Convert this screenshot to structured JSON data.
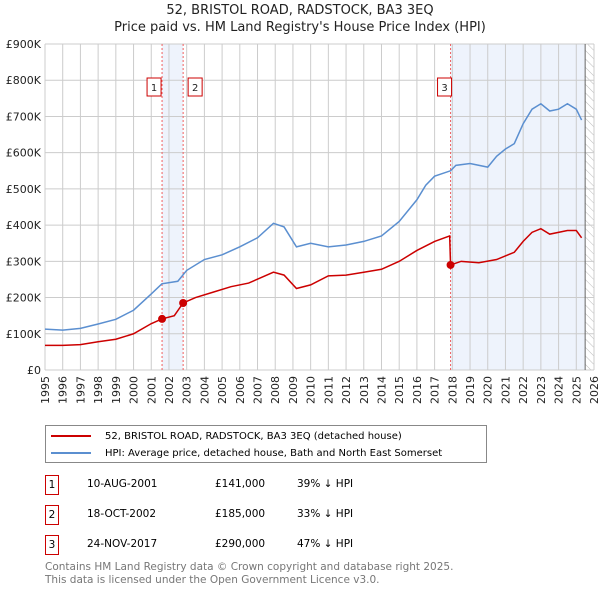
{
  "chart_data": {
    "type": "line",
    "title": "52, BRISTOL ROAD, RADSTOCK, BA3 3EQ",
    "subtitle": "Price paid vs. HM Land Registry's House Price Index (HPI)",
    "xlim": [
      1995,
      2026
    ],
    "ylim": [
      0,
      900000
    ],
    "yticks": [
      "£0",
      "£100K",
      "£200K",
      "£300K",
      "£400K",
      "£500K",
      "£600K",
      "£700K",
      "£800K",
      "£900K"
    ],
    "xticks": [
      "1995",
      "1996",
      "1997",
      "1998",
      "1999",
      "2000",
      "2001",
      "2002",
      "2003",
      "2004",
      "2005",
      "2006",
      "2007",
      "2008",
      "2009",
      "2010",
      "2011",
      "2012",
      "2013",
      "2014",
      "2015",
      "2016",
      "2017",
      "2018",
      "2019",
      "2020",
      "2021",
      "2022",
      "2023",
      "2024",
      "2025",
      "2026"
    ],
    "grid": true,
    "series": [
      {
        "name": "52, BRISTOL ROAD, RADSTOCK, BA3 3EQ (detached house)",
        "color": "#cc0000",
        "x": [
          1995,
          1996,
          1997,
          1998,
          1999,
          2000,
          2001,
          2001.6,
          2002.3,
          2002.8,
          2003.5,
          2004.5,
          2005.5,
          2006.5,
          2007.9,
          2008.5,
          2009.2,
          2010,
          2011,
          2012,
          2013,
          2014,
          2015,
          2016,
          2017,
          2017.85,
          2017.9,
          2018.5,
          2019.5,
          2020.5,
          2021.5,
          2022,
          2022.5,
          2023,
          2023.5,
          2024.5,
          2025,
          2025.3
        ],
        "y": [
          68000,
          68000,
          70000,
          78000,
          85000,
          100000,
          128000,
          141000,
          150000,
          185000,
          200000,
          215000,
          230000,
          240000,
          270000,
          262000,
          225000,
          235000,
          260000,
          262000,
          270000,
          278000,
          300000,
          330000,
          355000,
          370000,
          290000,
          300000,
          296000,
          305000,
          325000,
          355000,
          380000,
          390000,
          375000,
          385000,
          385000,
          365000
        ]
      },
      {
        "name": "HPI: Average price, detached house, Bath and North East Somerset",
        "color": "#5b8fd0",
        "x": [
          1995,
          1996,
          1997,
          1998,
          1999,
          2000,
          2001,
          2001.6,
          2002.5,
          2003,
          2004,
          2005,
          2006,
          2007,
          2007.9,
          2008.5,
          2009.2,
          2010,
          2011,
          2012,
          2013,
          2014,
          2015,
          2016,
          2016.5,
          2017,
          2017.9,
          2018.2,
          2019,
          2020,
          2020.5,
          2021,
          2021.5,
          2022,
          2022.5,
          2023,
          2023.5,
          2024,
          2024.5,
          2025,
          2025.3
        ],
        "y": [
          113000,
          110000,
          115000,
          127000,
          140000,
          165000,
          210000,
          238000,
          245000,
          275000,
          305000,
          318000,
          340000,
          365000,
          405000,
          395000,
          340000,
          350000,
          340000,
          345000,
          355000,
          370000,
          410000,
          470000,
          510000,
          535000,
          550000,
          565000,
          570000,
          560000,
          590000,
          610000,
          625000,
          680000,
          720000,
          735000,
          715000,
          720000,
          735000,
          720000,
          690000
        ]
      }
    ],
    "sales": [
      {
        "label": "1",
        "x": 2001.61,
        "y": 141000,
        "date": "10-AUG-2001",
        "price": "£141,000",
        "hpi": "39% ↓ HPI"
      },
      {
        "label": "2",
        "x": 2002.8,
        "y": 185000,
        "date": "18-OCT-2002",
        "price": "£185,000",
        "hpi": "33% ↓ HPI"
      },
      {
        "label": "3",
        "x": 2017.9,
        "y": 290000,
        "date": "24-NOV-2017",
        "price": "£290,000",
        "hpi": "47% ↓ HPI"
      }
    ]
  },
  "footer": [
    "Contains HM Land Registry data © Crown copyright and database right 2025.",
    "This data is licensed under the Open Government Licence v3.0."
  ]
}
